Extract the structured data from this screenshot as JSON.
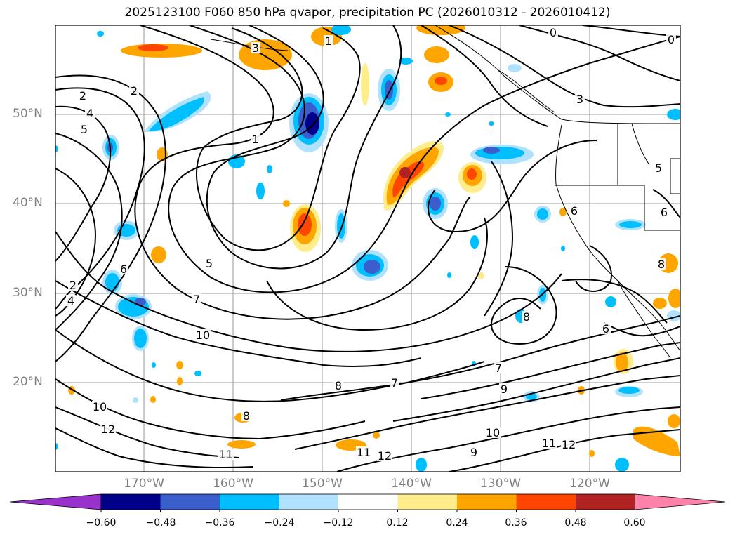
{
  "title": "2025123100 F060 850 hPa qvapor, precipitation PC (2026010312 - 2026010412)",
  "map": {
    "lat_ticks": [
      "50°N",
      "40°N",
      "30°N",
      "20°N"
    ],
    "lon_ticks": [
      "170°W",
      "160°W",
      "150°W",
      "140°W",
      "130°W",
      "120°W"
    ],
    "contour_labels": [
      "0",
      "0",
      "1",
      "1",
      "2",
      "2",
      "2",
      "3",
      "3",
      "4",
      "4",
      "5",
      "5",
      "5",
      "6",
      "6",
      "6",
      "6",
      "7",
      "7",
      "7",
      "8",
      "8",
      "8",
      "8",
      "9",
      "9",
      "10",
      "10",
      "10",
      "11",
      "11",
      "11",
      "12",
      "12",
      "12"
    ]
  },
  "colorbar": {
    "labels": [
      "−0.60",
      "−0.48",
      "−0.36",
      "−0.24",
      "−0.12",
      "0.12",
      "0.24",
      "0.36",
      "0.48",
      "0.60"
    ],
    "colors": [
      "#9932cc",
      "#00008b",
      "#3a5fcd",
      "#00bfff",
      "#b0e2ff",
      "#ffffff",
      "#ffec8b",
      "#ffa500",
      "#ff4500",
      "#b22222",
      "#ff82ab"
    ]
  }
}
